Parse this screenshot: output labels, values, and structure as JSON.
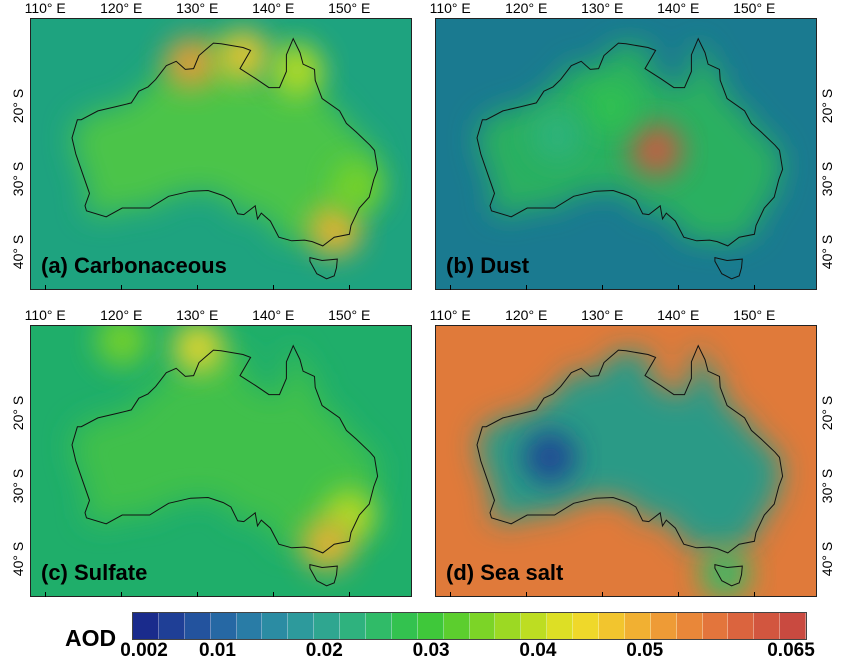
{
  "x_ticks": [
    "110° E",
    "120° E",
    "130° E",
    "140° E",
    "150° E"
  ],
  "y_ticks": [
    "20° S",
    "30° S",
    "40° S"
  ],
  "panels": [
    {
      "label": "(a) Carbonaceous",
      "background": "#1ea37f",
      "land": "#4cc44a",
      "hotspots": [
        {
          "lon": 129,
          "lat": -14,
          "level": 0.052
        },
        {
          "lon": 136,
          "lat": -13,
          "level": 0.048
        },
        {
          "lon": 143,
          "lat": -15,
          "level": 0.04
        },
        {
          "lon": 148,
          "lat": -37,
          "level": 0.05
        },
        {
          "lon": 151,
          "lat": -31,
          "level": 0.035
        }
      ]
    },
    {
      "label": "(b) Dust",
      "background": "#1a7a90",
      "land": "#2bb060",
      "hotspots": [
        {
          "lon": 137,
          "lat": -26,
          "level": 0.062
        },
        {
          "lon": 131,
          "lat": -20,
          "level": 0.028
        },
        {
          "lon": 124,
          "lat": -24,
          "level": 0.022
        }
      ]
    },
    {
      "label": "(c) Sulfate",
      "background": "#1fae6a",
      "land": "#3fc04c",
      "hotspots": [
        {
          "lon": 130,
          "lat": -11,
          "level": 0.045
        },
        {
          "lon": 150,
          "lat": -34,
          "level": 0.04
        },
        {
          "lon": 147,
          "lat": -38,
          "level": 0.05
        },
        {
          "lon": 120,
          "lat": -10,
          "level": 0.035
        }
      ]
    },
    {
      "label": "(d) Sea salt",
      "background": "#e07a3a",
      "land": "#2a9a86",
      "hotspots": [
        {
          "lon": 123,
          "lat": -26,
          "level": 0.006
        },
        {
          "lon": 146,
          "lat": -42,
          "level": 0.025
        }
      ]
    }
  ],
  "colorbar": {
    "title": "AOD",
    "tick_labels": [
      "0.002",
      "0.01",
      "0.02",
      "0.03",
      "0.04",
      "0.05",
      "0.065"
    ],
    "tick_values": [
      0.002,
      0.01,
      0.02,
      0.03,
      0.04,
      0.05,
      0.065
    ],
    "min": 0.002,
    "max": 0.065,
    "colors": [
      "#1a2b8c",
      "#1f3f96",
      "#23539e",
      "#2668a4",
      "#297ca6",
      "#2b8ca3",
      "#2d9a9c",
      "#2fa690",
      "#2fb27e",
      "#30bb68",
      "#33c24f",
      "#3fc83a",
      "#5cce2e",
      "#7cd427",
      "#9cd923",
      "#bddd22",
      "#dddf25",
      "#efd82a",
      "#f2c52e",
      "#f1b032",
      "#ee9b36",
      "#e98739",
      "#e3753c",
      "#db643e",
      "#d2563f",
      "#c94a40"
    ]
  }
}
